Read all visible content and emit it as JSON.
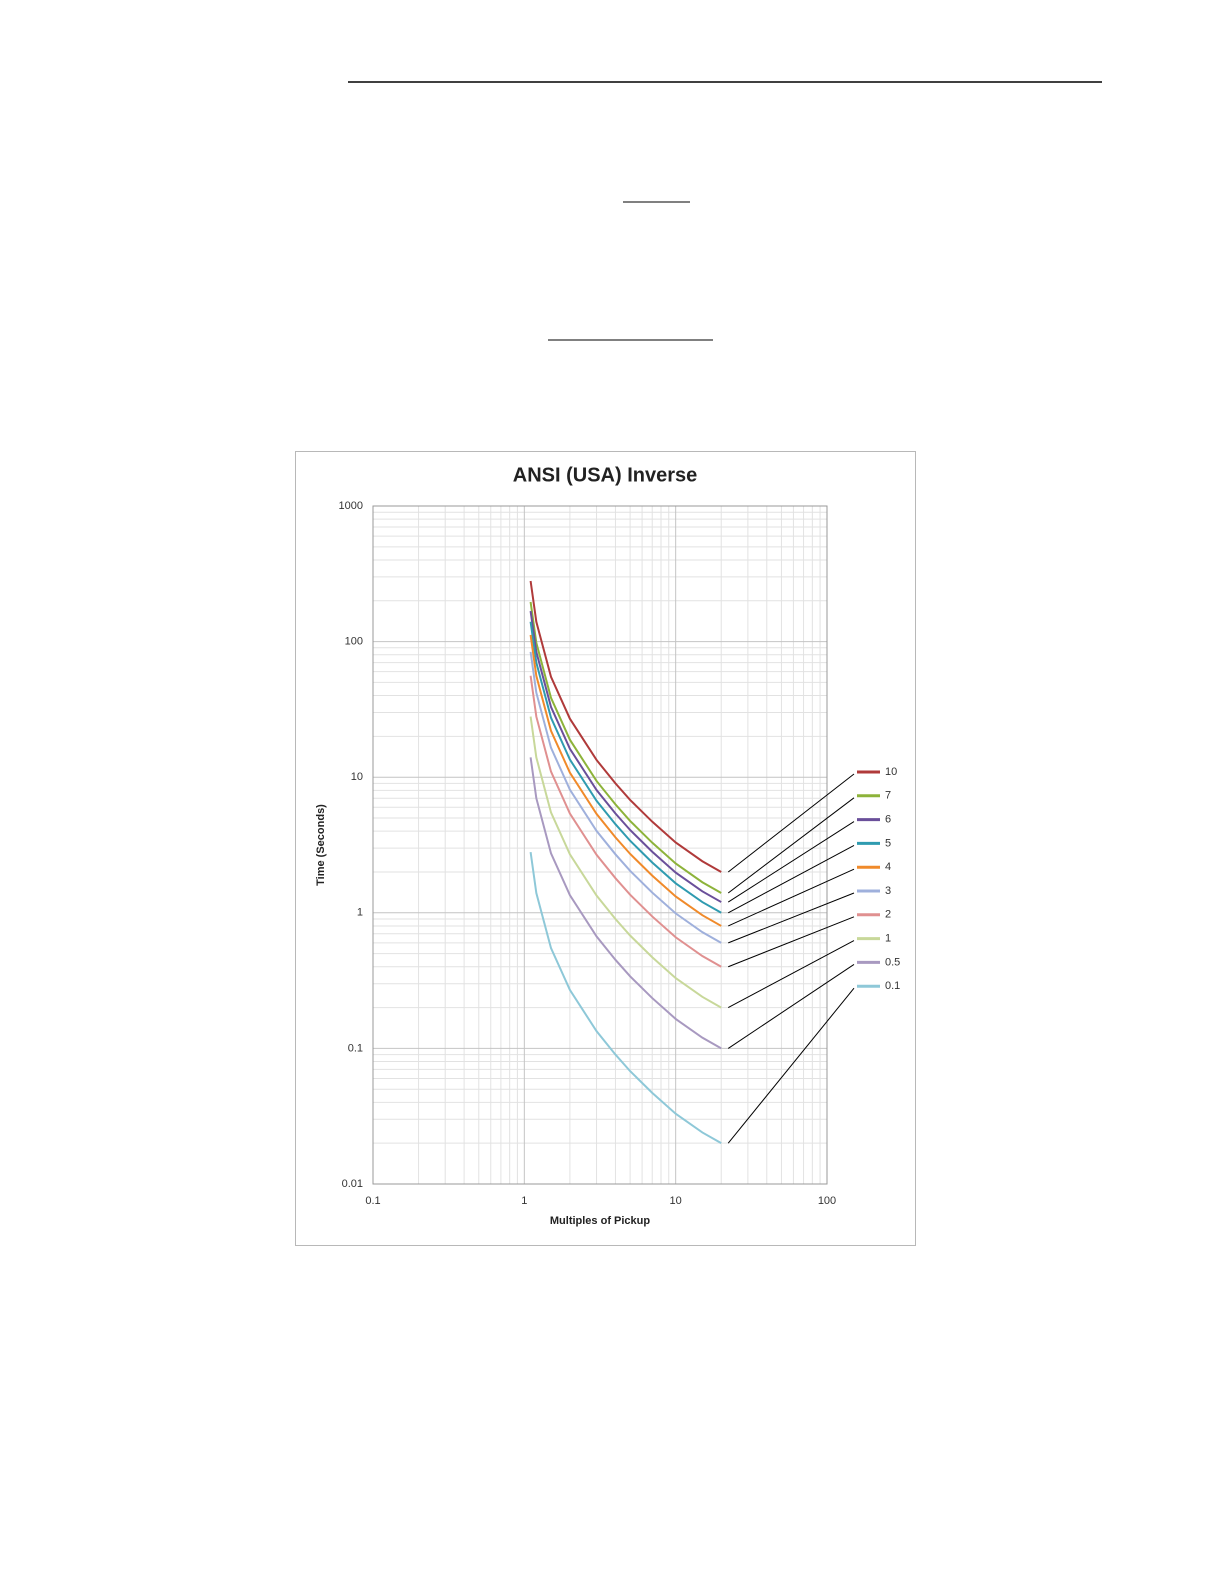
{
  "chart_data": {
    "type": "line",
    "title": "ANSI (USA) Inverse",
    "x_label": "Multiples of Pickup",
    "y_label": "Time (Seconds)",
    "x": [
      1.1,
      1.2,
      1.5,
      2,
      3,
      4,
      5,
      7,
      10,
      15,
      20
    ],
    "series": [
      {
        "name": "10",
        "color": "#b03a3a",
        "values": [
          280,
          140,
          55,
          27,
          13.4,
          9,
          6.8,
          4.7,
          3.3,
          2.4,
          2
        ]
      },
      {
        "name": "7",
        "color": "#8db33a",
        "values": [
          196,
          98,
          38.5,
          18.9,
          9.38,
          6.3,
          4.76,
          3.29,
          2.31,
          1.68,
          1.4
        ]
      },
      {
        "name": "6",
        "color": "#6a4f9a",
        "values": [
          168,
          84,
          33,
          16.2,
          8.04,
          5.4,
          4.08,
          2.82,
          1.98,
          1.44,
          1.2
        ]
      },
      {
        "name": "5",
        "color": "#2f9bb0",
        "values": [
          140,
          70,
          27.5,
          13.5,
          6.7,
          4.5,
          3.4,
          2.35,
          1.65,
          1.2,
          1
        ]
      },
      {
        "name": "4",
        "color": "#f08a2a",
        "values": [
          112,
          56,
          22,
          10.8,
          5.36,
          3.6,
          2.72,
          1.88,
          1.32,
          0.96,
          0.8
        ]
      },
      {
        "name": "3",
        "color": "#9fb0dc",
        "values": [
          84,
          42,
          16.5,
          8.1,
          4.02,
          2.7,
          2.04,
          1.41,
          0.99,
          0.72,
          0.6
        ]
      },
      {
        "name": "2",
        "color": "#e09090",
        "values": [
          56,
          28,
          11,
          5.4,
          2.68,
          1.8,
          1.36,
          0.94,
          0.66,
          0.48,
          0.4
        ]
      },
      {
        "name": "1",
        "color": "#c8d89a",
        "values": [
          28,
          14,
          5.5,
          2.7,
          1.34,
          0.9,
          0.68,
          0.47,
          0.33,
          0.24,
          0.2
        ]
      },
      {
        "name": "0.5",
        "color": "#a899c0",
        "values": [
          14,
          7,
          2.75,
          1.35,
          0.67,
          0.45,
          0.34,
          0.235,
          0.165,
          0.12,
          0.1
        ]
      },
      {
        "name": "0.1",
        "color": "#8ec8d8",
        "values": [
          2.8,
          1.4,
          0.55,
          0.27,
          0.134,
          0.09,
          0.068,
          0.047,
          0.033,
          0.024,
          0.02
        ]
      }
    ],
    "xscale": "log",
    "yscale": "log",
    "xlim": [
      0.1,
      100
    ],
    "xticks": [
      0.1,
      1,
      10,
      100
    ],
    "ylim": [
      0.01,
      1000
    ],
    "yticks": [
      0.01,
      0.1,
      1,
      10,
      100,
      1000
    ],
    "grid": true,
    "minor_grid": true,
    "legend_position": "right"
  }
}
